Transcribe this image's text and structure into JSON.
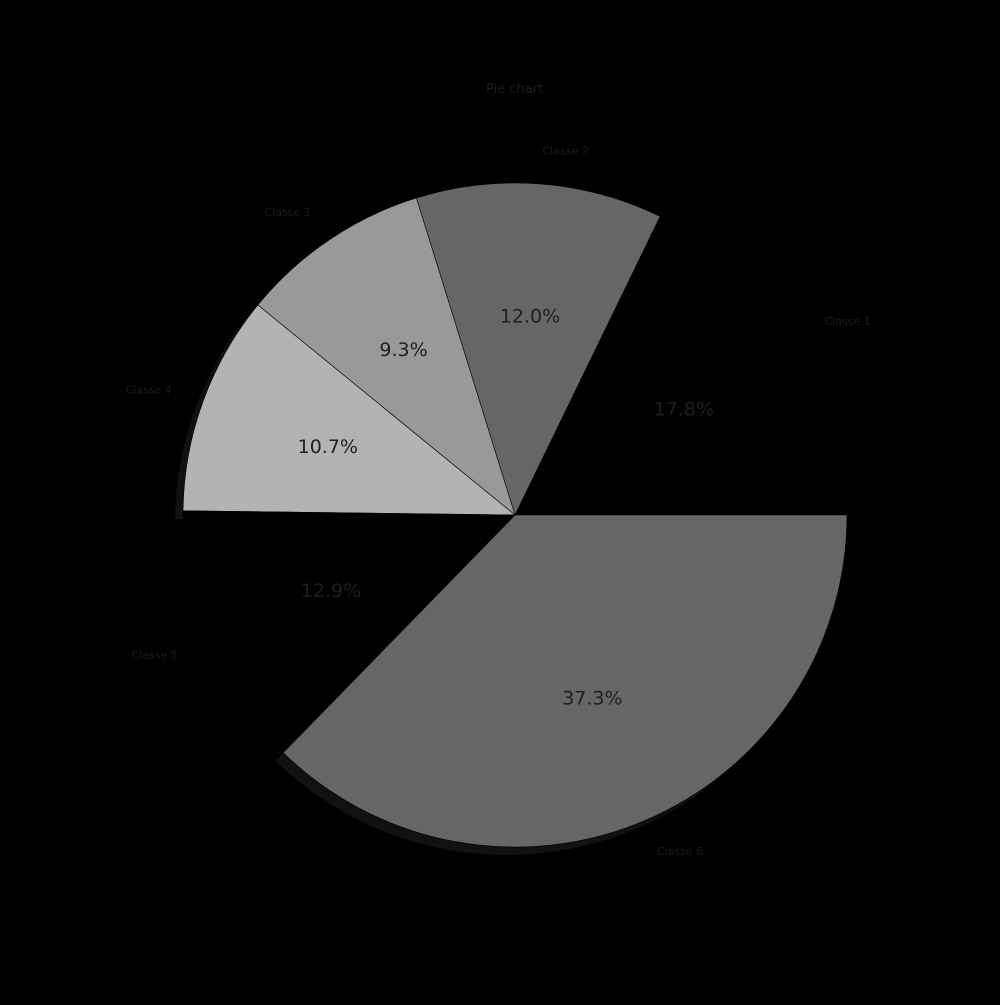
{
  "chart_data": {
    "type": "pie",
    "title": "Pie chart",
    "start_angle_deg": 0,
    "direction": "counterclockwise",
    "slices": [
      {
        "label": "Classe 1",
        "value": 17.8,
        "pct_label": "17.8%",
        "color": "#000000",
        "exploded": false,
        "shadow": false
      },
      {
        "label": "Classe 2",
        "value": 12.0,
        "pct_label": "12.0%",
        "color": "#666666",
        "exploded": false,
        "shadow": false
      },
      {
        "label": "Classe 3",
        "value": 9.3,
        "pct_label": "9.3%",
        "color": "#999999",
        "exploded": false,
        "shadow": false
      },
      {
        "label": "Classe 4",
        "value": 10.7,
        "pct_label": "10.7%",
        "color": "#b3b3b3",
        "exploded": false,
        "shadow": true
      },
      {
        "label": "Classe 5",
        "value": 12.9,
        "pct_label": "12.9%",
        "color": "#000000",
        "exploded": false,
        "shadow": false
      },
      {
        "label": "Classe 6",
        "value": 37.3,
        "pct_label": "37.3%",
        "color": "#666666",
        "exploded": false,
        "shadow": true
      }
    ],
    "background": "#000000",
    "edge_color": "#000000",
    "shadow_color": "#111111",
    "legend": "none"
  }
}
